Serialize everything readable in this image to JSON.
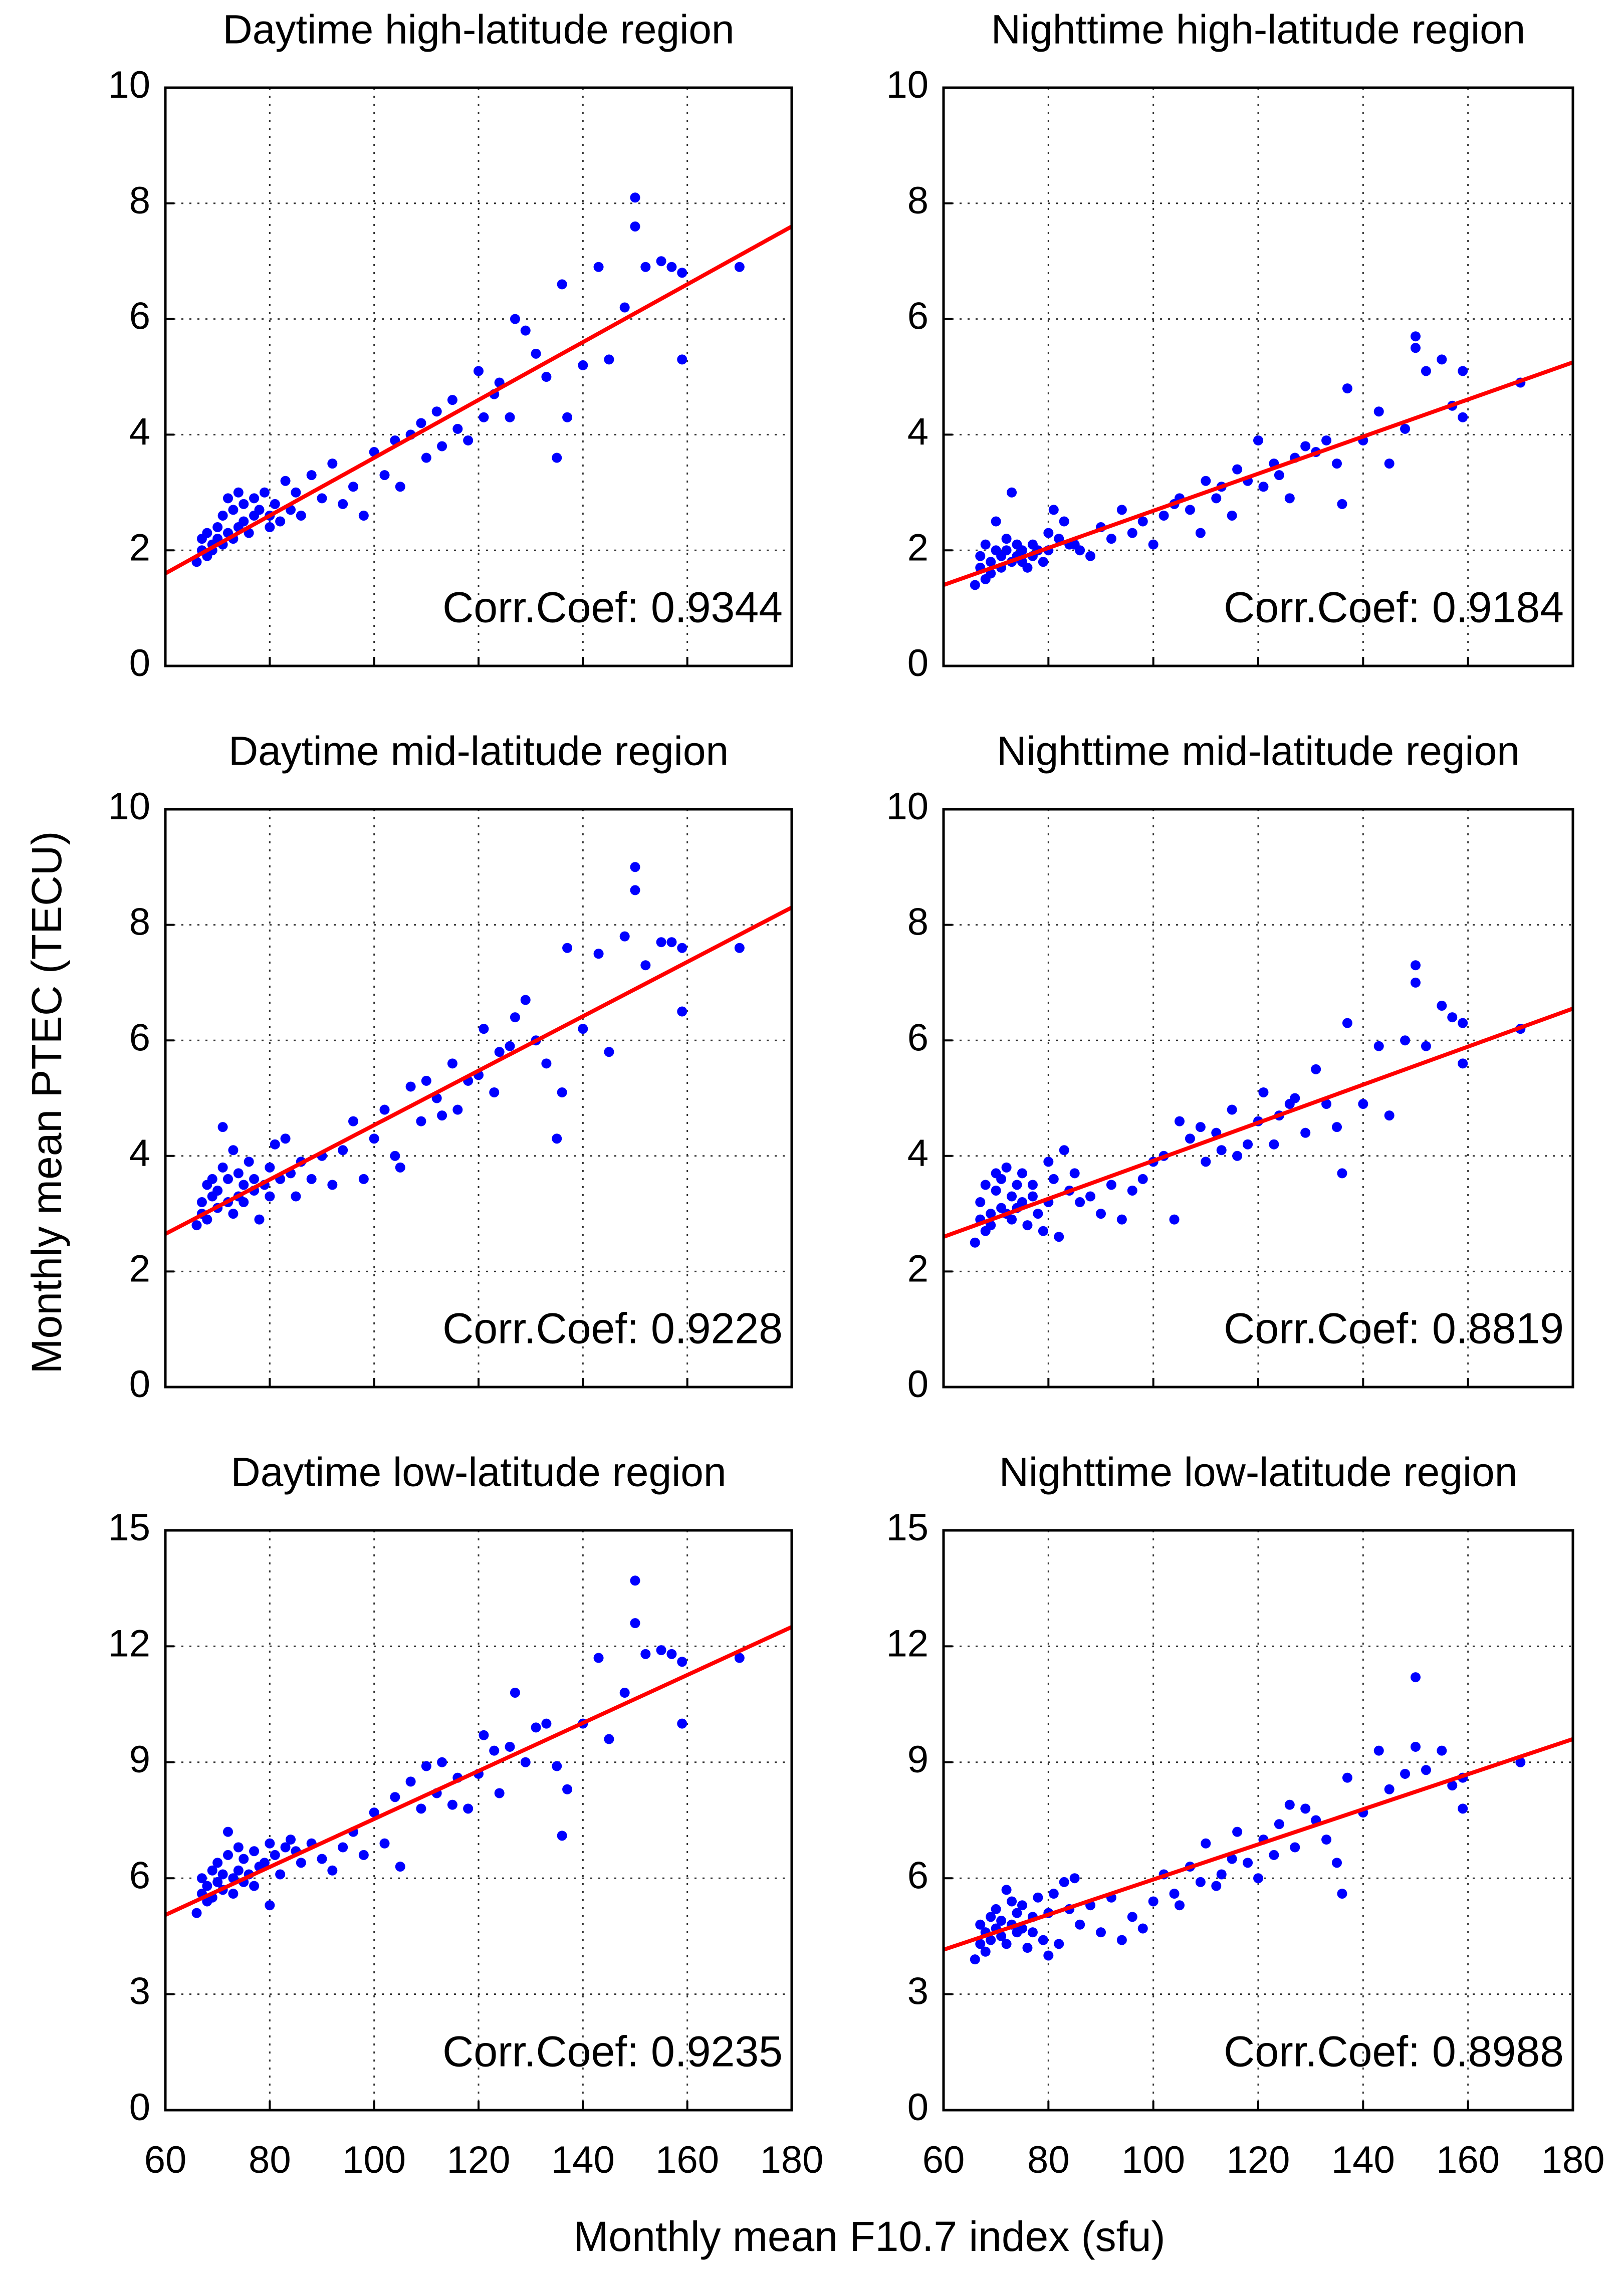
{
  "ylabel": "Monthly mean PTEC (TECU)",
  "xlabel": "Monthly mean F10.7 index (sfu)",
  "chart_data": [
    {
      "type": "scatter",
      "title": "Daytime high-latitude region",
      "annotation": "Corr.Coef: 0.9344",
      "color": "#0000ff",
      "grid": true,
      "xtick_labels": false,
      "xlim": [
        60,
        180
      ],
      "xticks": [
        60,
        80,
        100,
        120,
        140,
        160,
        180
      ],
      "ylim": [
        0,
        10
      ],
      "yticks": [
        0,
        2,
        4,
        6,
        8,
        10
      ],
      "x": [
        66,
        67,
        67,
        68,
        68,
        69,
        69,
        70,
        70,
        71,
        71,
        72,
        72,
        73,
        73,
        74,
        74,
        75,
        75,
        76,
        77,
        77,
        78,
        79,
        80,
        80,
        81,
        82,
        83,
        84,
        85,
        86,
        88,
        90,
        92,
        94,
        96,
        98,
        100,
        102,
        104,
        105,
        107,
        109,
        110,
        112,
        113,
        115,
        116,
        118,
        120,
        121,
        123,
        124,
        126,
        127,
        129,
        131,
        133,
        135,
        136,
        137,
        140,
        143,
        145,
        148,
        150,
        150,
        152,
        155,
        157,
        159,
        159,
        170
      ],
      "values": [
        1.8,
        2.0,
        2.2,
        1.9,
        2.3,
        2.1,
        2.0,
        2.2,
        2.4,
        2.1,
        2.6,
        2.3,
        2.9,
        2.2,
        2.7,
        2.4,
        3.0,
        2.5,
        2.8,
        2.3,
        2.6,
        2.9,
        2.7,
        3.0,
        2.4,
        2.6,
        2.8,
        2.5,
        3.2,
        2.7,
        3.0,
        2.6,
        3.3,
        2.9,
        3.5,
        2.8,
        3.1,
        2.6,
        3.7,
        3.3,
        3.9,
        3.1,
        4.0,
        4.2,
        3.6,
        4.4,
        3.8,
        4.6,
        4.1,
        3.9,
        5.1,
        4.3,
        4.7,
        4.9,
        4.3,
        6.0,
        5.8,
        5.4,
        5.0,
        3.6,
        6.6,
        4.3,
        5.2,
        6.9,
        5.3,
        6.2,
        8.1,
        7.6,
        6.9,
        7.0,
        6.9,
        5.3,
        6.8,
        6.9
      ],
      "fit": {
        "color": "#ff0000",
        "x": [
          60,
          180
        ],
        "y": [
          1.6,
          7.6
        ]
      }
    },
    {
      "type": "scatter",
      "title": "Nighttime high-latitude region",
      "annotation": "Corr.Coef: 0.9184",
      "color": "#0000ff",
      "grid": true,
      "xtick_labels": false,
      "xlim": [
        60,
        180
      ],
      "xticks": [
        60,
        80,
        100,
        120,
        140,
        160,
        180
      ],
      "ylim": [
        0,
        10
      ],
      "yticks": [
        0,
        2,
        4,
        6,
        8,
        10
      ],
      "x": [
        66,
        67,
        67,
        68,
        68,
        69,
        69,
        70,
        70,
        71,
        71,
        72,
        72,
        73,
        73,
        74,
        74,
        75,
        75,
        76,
        77,
        77,
        78,
        79,
        80,
        80,
        81,
        82,
        83,
        84,
        85,
        86,
        88,
        90,
        92,
        94,
        96,
        98,
        100,
        102,
        104,
        105,
        107,
        109,
        110,
        112,
        113,
        115,
        116,
        118,
        120,
        121,
        123,
        124,
        126,
        127,
        129,
        131,
        133,
        135,
        136,
        137,
        140,
        143,
        145,
        148,
        150,
        150,
        152,
        155,
        157,
        159,
        159,
        170
      ],
      "values": [
        1.4,
        1.7,
        1.9,
        1.5,
        2.1,
        1.8,
        1.6,
        2.0,
        2.5,
        1.9,
        1.7,
        2.2,
        2.0,
        1.8,
        3.0,
        1.9,
        2.1,
        1.8,
        2.0,
        1.7,
        2.1,
        1.9,
        2.0,
        1.8,
        2.3,
        2.0,
        2.7,
        2.2,
        2.5,
        2.1,
        2.1,
        2.0,
        1.9,
        2.4,
        2.2,
        2.7,
        2.3,
        2.5,
        2.1,
        2.6,
        2.8,
        2.9,
        2.7,
        2.3,
        3.2,
        2.9,
        3.1,
        2.6,
        3.4,
        3.2,
        3.9,
        3.1,
        3.5,
        3.3,
        2.9,
        3.6,
        3.8,
        3.7,
        3.9,
        3.5,
        2.8,
        4.8,
        3.9,
        4.4,
        3.5,
        4.1,
        5.7,
        5.5,
        5.1,
        5.3,
        4.5,
        4.3,
        5.1,
        4.9
      ],
      "fit": {
        "color": "#ff0000",
        "x": [
          60,
          180
        ],
        "y": [
          1.4,
          5.25
        ]
      }
    },
    {
      "type": "scatter",
      "title": "Daytime mid-latitude region",
      "annotation": "Corr.Coef: 0.9228",
      "color": "#0000ff",
      "grid": true,
      "xtick_labels": false,
      "xlim": [
        60,
        180
      ],
      "xticks": [
        60,
        80,
        100,
        120,
        140,
        160,
        180
      ],
      "ylim": [
        0,
        10
      ],
      "yticks": [
        0,
        2,
        4,
        6,
        8,
        10
      ],
      "x": [
        66,
        67,
        67,
        68,
        68,
        69,
        69,
        70,
        70,
        71,
        71,
        72,
        72,
        73,
        73,
        74,
        74,
        75,
        75,
        76,
        77,
        77,
        78,
        79,
        80,
        80,
        81,
        82,
        83,
        84,
        85,
        86,
        88,
        90,
        92,
        94,
        96,
        98,
        100,
        102,
        104,
        105,
        107,
        109,
        110,
        112,
        113,
        115,
        116,
        118,
        120,
        121,
        123,
        124,
        126,
        127,
        129,
        131,
        133,
        135,
        136,
        137,
        140,
        143,
        145,
        148,
        150,
        150,
        152,
        155,
        157,
        159,
        159,
        170
      ],
      "values": [
        2.8,
        3.2,
        3.0,
        3.5,
        2.9,
        3.3,
        3.6,
        3.1,
        3.4,
        4.5,
        3.8,
        3.2,
        3.6,
        3.0,
        4.1,
        3.3,
        3.7,
        3.5,
        3.2,
        3.9,
        3.4,
        3.6,
        2.9,
        3.5,
        3.8,
        3.3,
        4.2,
        3.6,
        4.3,
        3.7,
        3.3,
        3.9,
        3.6,
        4.0,
        3.5,
        4.1,
        4.6,
        3.6,
        4.3,
        4.8,
        4.0,
        3.8,
        5.2,
        4.6,
        5.3,
        5.0,
        4.7,
        5.6,
        4.8,
        5.3,
        5.4,
        6.2,
        5.1,
        5.8,
        5.9,
        6.4,
        6.7,
        6.0,
        5.6,
        4.3,
        5.1,
        7.6,
        6.2,
        7.5,
        5.8,
        7.8,
        9.0,
        8.6,
        7.3,
        7.7,
        7.7,
        6.5,
        7.6,
        7.6
      ],
      "fit": {
        "color": "#ff0000",
        "x": [
          60,
          180
        ],
        "y": [
          2.65,
          8.3
        ]
      }
    },
    {
      "type": "scatter",
      "title": "Nighttime mid-latitude region",
      "annotation": "Corr.Coef: 0.8819",
      "color": "#0000ff",
      "grid": true,
      "xtick_labels": false,
      "xlim": [
        60,
        180
      ],
      "xticks": [
        60,
        80,
        100,
        120,
        140,
        160,
        180
      ],
      "ylim": [
        0,
        10
      ],
      "yticks": [
        0,
        2,
        4,
        6,
        8,
        10
      ],
      "x": [
        66,
        67,
        67,
        68,
        68,
        69,
        69,
        70,
        70,
        71,
        71,
        72,
        72,
        73,
        73,
        74,
        74,
        75,
        75,
        76,
        77,
        77,
        78,
        79,
        80,
        80,
        81,
        82,
        83,
        84,
        85,
        86,
        88,
        90,
        92,
        94,
        96,
        98,
        100,
        102,
        104,
        105,
        107,
        109,
        110,
        112,
        113,
        115,
        116,
        118,
        120,
        121,
        123,
        124,
        126,
        127,
        129,
        131,
        133,
        135,
        136,
        137,
        140,
        143,
        145,
        148,
        150,
        150,
        152,
        155,
        157,
        159,
        159,
        170
      ],
      "values": [
        2.5,
        2.9,
        3.2,
        2.7,
        3.5,
        3.0,
        2.8,
        3.4,
        3.7,
        3.1,
        3.6,
        3.0,
        3.8,
        2.9,
        3.3,
        3.5,
        3.1,
        3.7,
        3.2,
        2.8,
        3.3,
        3.5,
        3.0,
        2.7,
        3.2,
        3.9,
        3.6,
        2.6,
        4.1,
        3.4,
        3.7,
        3.2,
        3.3,
        3.0,
        3.5,
        2.9,
        3.4,
        3.6,
        3.9,
        4.0,
        2.9,
        4.6,
        4.3,
        4.5,
        3.9,
        4.4,
        4.1,
        4.8,
        4.0,
        4.2,
        4.6,
        5.1,
        4.2,
        4.7,
        4.9,
        5.0,
        4.4,
        5.5,
        4.9,
        4.5,
        3.7,
        6.3,
        4.9,
        5.9,
        4.7,
        6.0,
        7.3,
        7.0,
        5.9,
        6.6,
        6.4,
        5.6,
        6.3,
        6.2
      ],
      "fit": {
        "color": "#ff0000",
        "x": [
          60,
          180
        ],
        "y": [
          2.6,
          6.55
        ]
      }
    },
    {
      "type": "scatter",
      "title": "Daytime low-latitude region",
      "annotation": "Corr.Coef: 0.9235",
      "color": "#0000ff",
      "grid": true,
      "xtick_labels": true,
      "xlim": [
        60,
        180
      ],
      "xticks": [
        60,
        80,
        100,
        120,
        140,
        160,
        180
      ],
      "ylim": [
        0,
        15
      ],
      "yticks": [
        0,
        3,
        6,
        9,
        12,
        15
      ],
      "x": [
        66,
        67,
        67,
        68,
        68,
        69,
        69,
        70,
        70,
        71,
        71,
        72,
        72,
        73,
        73,
        74,
        74,
        75,
        75,
        76,
        77,
        77,
        78,
        79,
        80,
        80,
        81,
        82,
        83,
        84,
        85,
        86,
        88,
        90,
        92,
        94,
        96,
        98,
        100,
        102,
        104,
        105,
        107,
        109,
        110,
        112,
        113,
        115,
        116,
        118,
        120,
        121,
        123,
        124,
        126,
        127,
        129,
        131,
        133,
        135,
        136,
        137,
        140,
        143,
        145,
        148,
        150,
        150,
        152,
        155,
        157,
        159,
        159,
        170
      ],
      "values": [
        5.1,
        5.6,
        6.0,
        5.4,
        5.8,
        6.2,
        5.5,
        5.9,
        6.4,
        5.7,
        6.1,
        6.6,
        7.2,
        6.0,
        5.6,
        6.8,
        6.2,
        5.9,
        6.5,
        6.1,
        6.7,
        5.8,
        6.3,
        6.4,
        6.9,
        5.3,
        6.6,
        6.1,
        6.8,
        7.0,
        6.7,
        6.4,
        6.9,
        6.5,
        6.2,
        6.8,
        7.2,
        6.6,
        7.7,
        6.9,
        8.1,
        6.3,
        8.5,
        7.8,
        8.9,
        8.2,
        9.0,
        7.9,
        8.6,
        7.8,
        8.7,
        9.7,
        9.3,
        8.2,
        9.4,
        10.8,
        9.0,
        9.9,
        10.0,
        8.9,
        7.1,
        8.3,
        10.0,
        11.7,
        9.6,
        10.8,
        13.7,
        12.6,
        11.8,
        11.9,
        11.8,
        10.0,
        11.6,
        11.7
      ],
      "fit": {
        "color": "#ff0000",
        "x": [
          60,
          180
        ],
        "y": [
          5.05,
          12.5
        ]
      }
    },
    {
      "type": "scatter",
      "title": "Nighttime low-latitude region",
      "annotation": "Corr.Coef: 0.8988",
      "color": "#0000ff",
      "grid": true,
      "xtick_labels": true,
      "xlim": [
        60,
        180
      ],
      "xticks": [
        60,
        80,
        100,
        120,
        140,
        160,
        180
      ],
      "ylim": [
        0,
        15
      ],
      "yticks": [
        0,
        3,
        6,
        9,
        12,
        15
      ],
      "x": [
        66,
        67,
        67,
        68,
        68,
        69,
        69,
        70,
        70,
        71,
        71,
        72,
        72,
        73,
        73,
        74,
        74,
        75,
        75,
        76,
        77,
        77,
        78,
        79,
        80,
        80,
        81,
        82,
        83,
        84,
        85,
        86,
        88,
        90,
        92,
        94,
        96,
        98,
        100,
        102,
        104,
        105,
        107,
        109,
        110,
        112,
        113,
        115,
        116,
        118,
        120,
        121,
        123,
        124,
        126,
        127,
        129,
        131,
        133,
        135,
        136,
        137,
        140,
        143,
        145,
        148,
        150,
        150,
        152,
        155,
        157,
        159,
        159,
        170
      ],
      "values": [
        3.9,
        4.3,
        4.8,
        4.1,
        4.6,
        5.0,
        4.4,
        4.7,
        5.2,
        4.5,
        4.9,
        5.7,
        4.3,
        4.8,
        5.4,
        4.6,
        5.1,
        4.7,
        5.3,
        4.2,
        5.0,
        4.6,
        5.5,
        4.4,
        5.1,
        4.0,
        5.6,
        4.3,
        5.9,
        5.2,
        6.0,
        4.8,
        5.3,
        4.6,
        5.5,
        4.4,
        5.0,
        4.7,
        5.4,
        6.1,
        5.6,
        5.3,
        6.3,
        5.9,
        6.9,
        5.8,
        6.1,
        6.5,
        7.2,
        6.4,
        6.0,
        7.0,
        6.6,
        7.4,
        7.9,
        6.8,
        7.8,
        7.5,
        7.0,
        6.4,
        5.6,
        8.6,
        7.7,
        9.3,
        8.3,
        8.7,
        11.2,
        9.4,
        8.8,
        9.3,
        8.4,
        8.6,
        7.8,
        9.0
      ],
      "fit": {
        "color": "#ff0000",
        "x": [
          60,
          180
        ],
        "y": [
          4.15,
          9.6
        ]
      }
    }
  ]
}
